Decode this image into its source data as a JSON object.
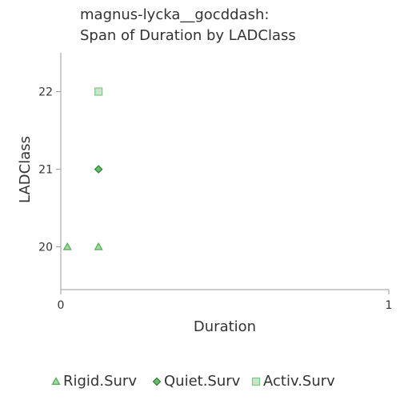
{
  "chart_data": {
    "type": "scatter",
    "title_line1": "magnus-lycka__gocddash:",
    "title_line2": "Span of Duration by LADClass",
    "xlabel": "Duration",
    "ylabel": "LADClass",
    "xlim": [
      0,
      1
    ],
    "ylim": [
      19.45,
      22.5
    ],
    "xticks": [
      0,
      1
    ],
    "yticks": [
      20,
      21,
      22
    ],
    "grid": false,
    "legend_position": "bottom",
    "series": [
      {
        "name": "Rigid.Surv",
        "marker": "triangle",
        "color": "#4caf50",
        "fill": "#a5d6a7",
        "points": [
          {
            "x": 0.02,
            "y": 20
          },
          {
            "x": 0.115,
            "y": 20
          }
        ]
      },
      {
        "name": "Quiet.Surv",
        "marker": "diamond",
        "color": "#2e7d32",
        "fill": "#66bb6a",
        "points": [
          {
            "x": 0.115,
            "y": 21
          }
        ]
      },
      {
        "name": "Activ.Surv",
        "marker": "square",
        "color": "#81c784",
        "fill": "#c8e6c9",
        "points": [
          {
            "x": 0.115,
            "y": 22
          }
        ]
      }
    ]
  }
}
